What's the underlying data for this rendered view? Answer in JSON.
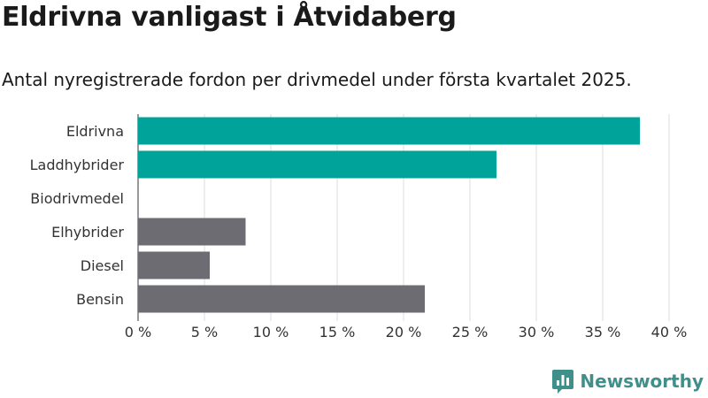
{
  "title": "Eldrivna vanligast i Åtvidaberg",
  "subtitle": "Antal nyregistrerade fordon per drivmedel under första kvartalet 2025.",
  "brand": {
    "name": "Newsworthy",
    "logo_icon": "bar-chart-speech-bubble-icon",
    "color": "#3f8f8a"
  },
  "chart_data": {
    "type": "bar",
    "orientation": "horizontal",
    "categories": [
      "Eldrivna",
      "Laddhybrider",
      "Biodrivmedel",
      "Elhybrider",
      "Diesel",
      "Bensin"
    ],
    "values": [
      37.8,
      27.0,
      0,
      8.1,
      5.4,
      21.6
    ],
    "colors": [
      "#00a39a",
      "#00a39a",
      "#00a39a",
      "#6d6c72",
      "#6d6c72",
      "#6d6c72"
    ],
    "xlim": [
      0,
      40
    ],
    "xticks": [
      0,
      5,
      10,
      15,
      20,
      25,
      30,
      35,
      40
    ],
    "tick_suffix": " %",
    "grid": true
  }
}
